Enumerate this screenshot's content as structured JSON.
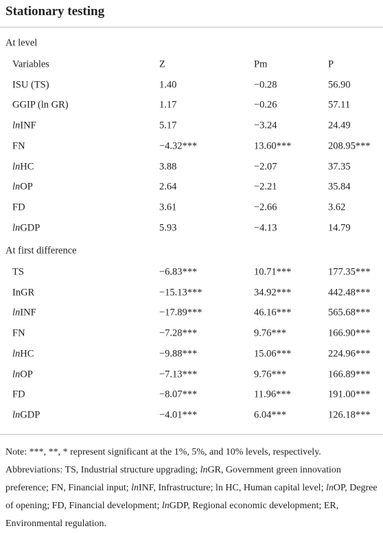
{
  "title": "Stationary testing",
  "table": {
    "header": [
      "Variables",
      "Z",
      "Pm",
      "P"
    ],
    "sections": [
      {
        "label": "At level",
        "rows": [
          [
            "ISU (TS)",
            "1.40",
            "−0.28",
            "56.90"
          ],
          [
            "GGIP (ln GR)",
            "1.17",
            "−0.26",
            "57.11"
          ],
          [
            "lnINF",
            "5.17",
            "−3.24",
            "24.49"
          ],
          [
            "FN",
            "−4.32***",
            "13.60***",
            "208.95***"
          ],
          [
            "lnHC",
            "3.88",
            "−2.07",
            "37.35"
          ],
          [
            "lnOP",
            "2.64",
            "−2.21",
            "35.84"
          ],
          [
            "FD",
            "3.61",
            "−2.66",
            "3.62"
          ],
          [
            "lnGDP",
            "5.93",
            "−4.13",
            "14.79"
          ]
        ]
      },
      {
        "label": "At first difference",
        "rows": [
          [
            "TS",
            "−6.83***",
            "10.71***",
            "177.35***"
          ],
          [
            "InGR",
            "−15.13***",
            "34.92***",
            "442.48***"
          ],
          [
            "lnINF",
            "−17.89***",
            "46.16***",
            "565.68***"
          ],
          [
            "FN",
            "−7.28***",
            "9.76***",
            "166.90***"
          ],
          [
            "lnHC",
            "−9.88***",
            "15.06***",
            "224.96***"
          ],
          [
            "lnOP",
            "−7.13***",
            "9.76***",
            "166.89***"
          ],
          [
            "FD",
            "−8.07***",
            "11.96***",
            "191.00***"
          ],
          [
            "lnGDP",
            "−4.01***",
            "6.04***",
            "126.18***"
          ]
        ]
      }
    ]
  },
  "notes": [
    "Note: ***, **, * represent significant at the 1%, 5%, and 10% levels, respectively.",
    "Abbreviations: TS, Industrial structure upgrading; lnGR, Government green innovation preference; FN, Financial input; lnINF, Infrastructure; ln HC, Human capital level; lnOP, Degree of opening; FD, Financial development; lnGDP, Regional economic development; ER, Environmental regulation."
  ]
}
